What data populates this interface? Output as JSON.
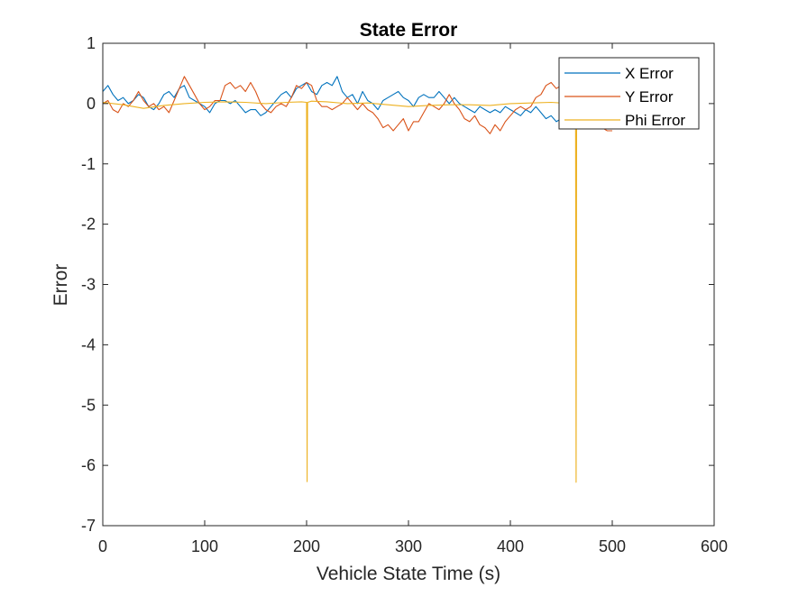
{
  "chart_data": {
    "type": "line",
    "title": "State Error",
    "xlabel": "Vehicle State Time (s)",
    "ylabel": "Error",
    "xlim": [
      0,
      600
    ],
    "ylim": [
      -7,
      1
    ],
    "xticks": [
      0,
      100,
      200,
      300,
      400,
      500,
      600
    ],
    "yticks": [
      -7,
      -6,
      -5,
      -4,
      -3,
      -2,
      -1,
      0,
      1
    ],
    "grid": false,
    "legend_position": "top-right",
    "series": [
      {
        "name": "X Error",
        "color": "#0072BD",
        "x": [
          0,
          5,
          10,
          15,
          20,
          25,
          30,
          35,
          40,
          45,
          50,
          55,
          60,
          65,
          70,
          75,
          80,
          85,
          90,
          95,
          100,
          105,
          110,
          115,
          120,
          125,
          130,
          135,
          140,
          145,
          150,
          155,
          160,
          165,
          170,
          175,
          180,
          185,
          190,
          195,
          200,
          205,
          210,
          215,
          220,
          225,
          230,
          235,
          240,
          245,
          250,
          255,
          260,
          265,
          270,
          275,
          280,
          285,
          290,
          295,
          300,
          305,
          310,
          315,
          320,
          325,
          330,
          335,
          340,
          345,
          350,
          355,
          360,
          365,
          370,
          375,
          380,
          385,
          390,
          395,
          400,
          405,
          410,
          415,
          420,
          425,
          430,
          435,
          440,
          445,
          450,
          455,
          460,
          465,
          470,
          475,
          480,
          485,
          490,
          495,
          500
        ],
        "y": [
          0.2,
          0.3,
          0.15,
          0.05,
          0.1,
          0.0,
          0.05,
          0.15,
          0.1,
          -0.05,
          -0.1,
          0.0,
          0.15,
          0.2,
          0.1,
          0.25,
          0.3,
          0.1,
          0.05,
          0.0,
          -0.05,
          -0.15,
          0.0,
          0.05,
          0.05,
          0.0,
          0.05,
          -0.05,
          -0.15,
          -0.1,
          -0.1,
          -0.2,
          -0.15,
          -0.05,
          0.05,
          0.15,
          0.2,
          0.1,
          0.25,
          0.3,
          0.35,
          0.2,
          0.15,
          0.3,
          0.35,
          0.3,
          0.45,
          0.2,
          0.1,
          0.15,
          0.0,
          0.2,
          0.05,
          0.0,
          -0.1,
          0.05,
          0.1,
          0.15,
          0.2,
          0.1,
          0.05,
          -0.05,
          0.1,
          0.15,
          0.1,
          0.1,
          0.2,
          0.1,
          0.0,
          0.1,
          0.0,
          -0.05,
          -0.1,
          -0.15,
          -0.05,
          -0.1,
          -0.15,
          -0.1,
          -0.15,
          -0.05,
          -0.1,
          -0.15,
          -0.2,
          -0.1,
          -0.15,
          -0.05,
          -0.15,
          -0.25,
          -0.2,
          -0.3,
          -0.25,
          -0.2,
          -0.15,
          -0.05,
          -0.05,
          -0.1,
          -0.15,
          -0.2,
          -0.25,
          -0.3,
          -0.3
        ]
      },
      {
        "name": "Y Error",
        "color": "#D95319",
        "x": [
          0,
          5,
          10,
          15,
          20,
          25,
          30,
          35,
          40,
          45,
          50,
          55,
          60,
          65,
          70,
          75,
          80,
          85,
          90,
          95,
          100,
          105,
          110,
          115,
          120,
          125,
          130,
          135,
          140,
          145,
          150,
          155,
          160,
          165,
          170,
          175,
          180,
          185,
          190,
          195,
          200,
          205,
          210,
          215,
          220,
          225,
          230,
          235,
          240,
          245,
          250,
          255,
          260,
          265,
          270,
          275,
          280,
          285,
          290,
          295,
          300,
          305,
          310,
          315,
          320,
          325,
          330,
          335,
          340,
          345,
          350,
          355,
          360,
          365,
          370,
          375,
          380,
          385,
          390,
          395,
          400,
          405,
          410,
          415,
          420,
          425,
          430,
          435,
          440,
          445,
          450,
          455,
          460,
          465,
          470,
          475,
          480,
          485,
          490,
          495,
          500
        ],
        "y": [
          0.0,
          0.05,
          -0.1,
          -0.15,
          0.0,
          -0.05,
          0.05,
          0.2,
          0.05,
          -0.05,
          0.0,
          -0.1,
          -0.05,
          -0.15,
          0.05,
          0.25,
          0.45,
          0.3,
          0.15,
          0.0,
          -0.1,
          -0.05,
          0.05,
          0.05,
          0.3,
          0.35,
          0.25,
          0.3,
          0.2,
          0.35,
          0.2,
          0.0,
          -0.1,
          -0.15,
          -0.05,
          0.0,
          -0.05,
          0.1,
          0.3,
          0.25,
          0.35,
          0.3,
          0.05,
          -0.05,
          -0.05,
          -0.1,
          -0.05,
          0.0,
          0.1,
          0.0,
          -0.1,
          0.0,
          -0.1,
          -0.15,
          -0.25,
          -0.4,
          -0.35,
          -0.45,
          -0.35,
          -0.25,
          -0.45,
          -0.3,
          -0.3,
          -0.15,
          0.0,
          -0.05,
          -0.1,
          0.0,
          0.15,
          0.0,
          -0.1,
          -0.25,
          -0.3,
          -0.2,
          -0.35,
          -0.4,
          -0.5,
          -0.35,
          -0.45,
          -0.3,
          -0.2,
          -0.1,
          -0.05,
          -0.1,
          -0.05,
          0.1,
          0.15,
          0.3,
          0.35,
          0.25,
          0.3,
          0.2,
          0.05,
          -0.05,
          -0.1,
          -0.2,
          -0.3,
          -0.35,
          -0.4,
          -0.45,
          -0.45
        ]
      },
      {
        "name": "Phi Error",
        "color": "#EDB120",
        "x": [
          0,
          20,
          40,
          60,
          80,
          100,
          120,
          140,
          160,
          180,
          195,
          200,
          200.5,
          201,
          205,
          220,
          240,
          260,
          280,
          300,
          320,
          340,
          360,
          380,
          400,
          420,
          440,
          460,
          464,
          464.5,
          465,
          470,
          480,
          500
        ],
        "y": [
          0.02,
          -0.02,
          -0.08,
          -0.03,
          0.0,
          0.02,
          0.03,
          0.02,
          0.0,
          0.02,
          0.03,
          0.02,
          -6.27,
          0.02,
          0.04,
          0.03,
          0.0,
          0.01,
          -0.02,
          -0.05,
          -0.03,
          -0.02,
          -0.02,
          -0.03,
          0.0,
          0.01,
          0.02,
          0.0,
          -0.02,
          -6.28,
          -0.02,
          -0.03,
          -0.04,
          -0.05
        ]
      }
    ]
  }
}
